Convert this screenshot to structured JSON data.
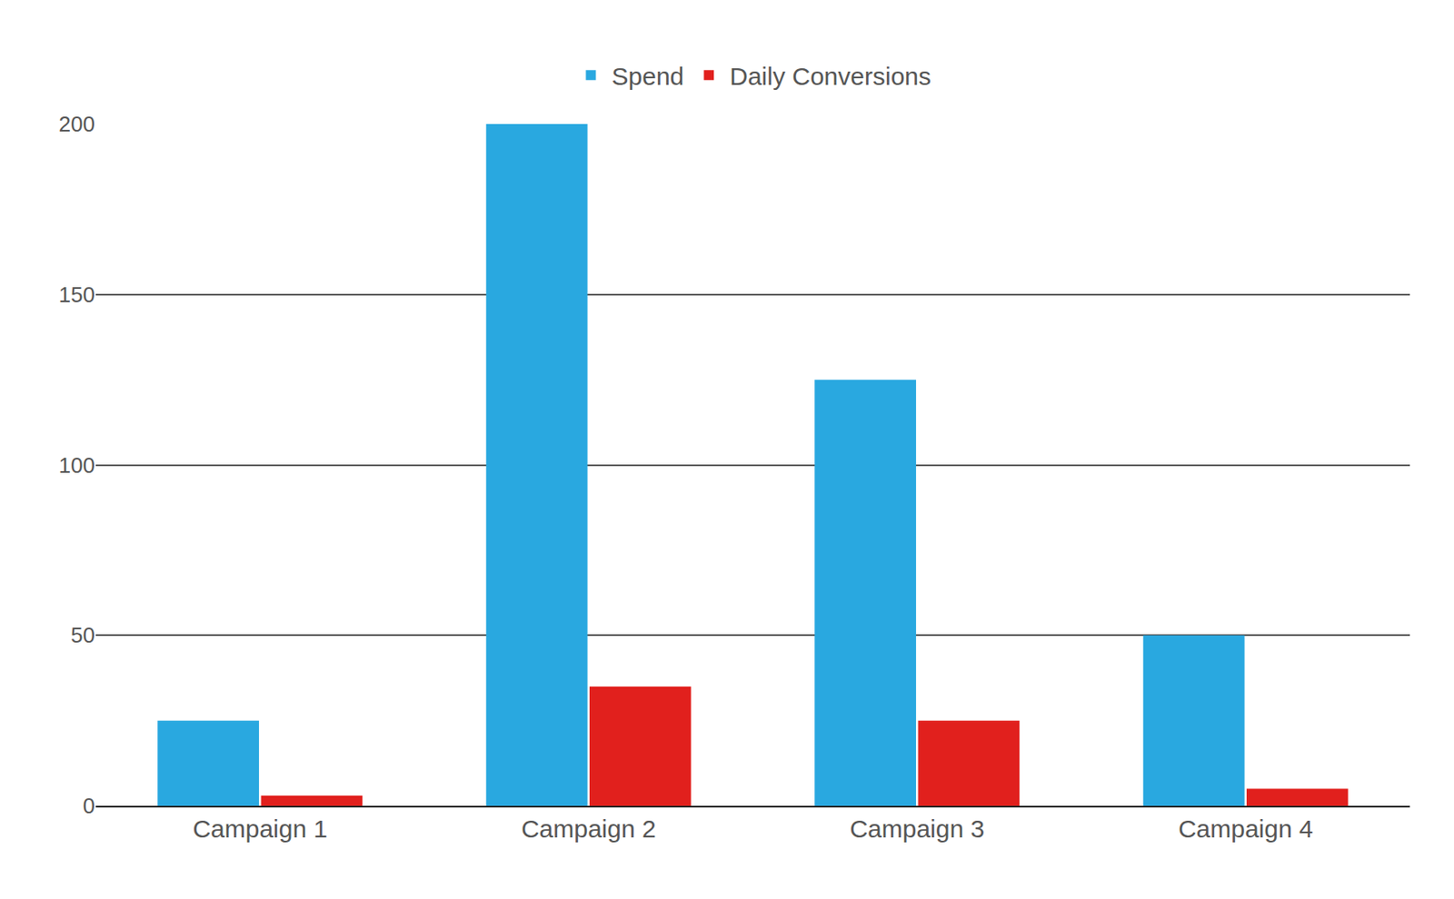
{
  "chart_data": {
    "type": "bar",
    "categories": [
      "Campaign 1",
      "Campaign 2",
      "Campaign 3",
      "Campaign 4"
    ],
    "series": [
      {
        "name": "Spend",
        "color": "#29a8e0",
        "values": [
          25,
          200,
          125,
          50
        ]
      },
      {
        "name": "Daily Conversions",
        "color": "#e1201d",
        "values": [
          3,
          35,
          25,
          5
        ]
      }
    ],
    "ylim": [
      0,
      200
    ],
    "yticks": [
      0,
      50,
      100,
      150,
      200
    ],
    "grid": true,
    "legend": "top"
  }
}
